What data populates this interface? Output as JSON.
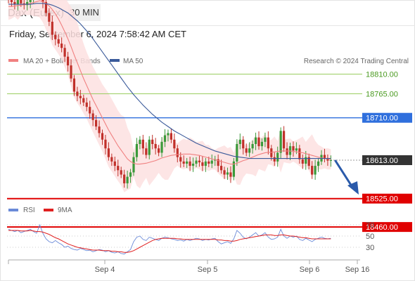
{
  "header": {
    "symbol": "Dax (Eurex)",
    "interval": "30 MIN",
    "datetime": "Friday, September 6, 2024 7:58:42 AM CET"
  },
  "legend": {
    "ma20": "MA 20 + Bollinger Bands",
    "ma50": "MA 50",
    "source": "Research © 2024 Trading Central",
    "rsi": "RSI",
    "rsi_ma": "9MA"
  },
  "colors": {
    "ma20": "#f08080",
    "ma50": "#3a5a9a",
    "band": "#fde0e0",
    "resistance": "#9acd60",
    "pivot": "#2f6fdd",
    "support": "#e00000",
    "current": "#333333",
    "up": "#3a9a3a",
    "down": "#c0302a",
    "rsi": "#6a8ad8",
    "rsi_ma": "#e02020",
    "arrow": "#2a5aaa"
  },
  "chart_data": [
    {
      "type": "candlestick",
      "x_ticks": [
        "Sep 4",
        "Sep 5",
        "Sep 6",
        "Sep 16"
      ],
      "ylim": [
        18400,
        19100
      ],
      "levels": [
        {
          "value": 18810.0,
          "label": "18810.00",
          "kind": "resistance"
        },
        {
          "value": 18765.0,
          "label": "18765.00",
          "kind": "resistance"
        },
        {
          "value": 18710.0,
          "label": "18710.00",
          "kind": "pivot"
        },
        {
          "value": 18613.0,
          "label": "18613.00",
          "kind": "current"
        },
        {
          "value": 18525.0,
          "label": "18525.00",
          "kind": "support"
        },
        {
          "value": 18460.0,
          "label": "18460.00",
          "kind": "support"
        }
      ],
      "close": [
        18980,
        18975,
        18970,
        18985,
        18972,
        18968,
        18975,
        18980,
        18990,
        18995,
        19005,
        18975,
        18950,
        18930,
        18900,
        18890,
        18880,
        18870,
        18850,
        18830,
        18800,
        18770,
        18760,
        18755,
        18745,
        18735,
        18720,
        18705,
        18690,
        18675,
        18660,
        18640,
        18620,
        18610,
        18600,
        18590,
        18580,
        18560,
        18575,
        18585,
        18620,
        18650,
        18660,
        18640,
        18625,
        18660,
        18650,
        18640,
        18630,
        18655,
        18670,
        18675,
        18660,
        18640,
        18620,
        18610,
        18605,
        18610,
        18600,
        18605,
        18612,
        18608,
        18600,
        18610,
        18605,
        18612,
        18615,
        18600,
        18590,
        18580,
        18585,
        18575,
        18610,
        18650,
        18660,
        18640,
        18630,
        18640,
        18650,
        18665,
        18645,
        18655,
        18665,
        18640,
        18620,
        18610,
        18630,
        18680,
        18640,
        18625,
        18645,
        18635,
        18640,
        18615,
        18605,
        18620,
        18600,
        18580,
        18600,
        18610,
        18625,
        18618,
        18612,
        18613
      ],
      "ma20": [
        18965,
        18965,
        18966,
        18967,
        18968,
        18969,
        18970,
        18972,
        18974,
        18976,
        18978,
        18976,
        18972,
        18966,
        18958,
        18948,
        18936,
        18922,
        18907,
        18891,
        18873,
        18854,
        18836,
        18818,
        18800,
        18784,
        18768,
        18752,
        18738,
        18724,
        18710,
        18696,
        18682,
        18670,
        18658,
        18646,
        18636,
        18626,
        18616,
        18610,
        18606,
        18604,
        18604,
        18605,
        18606,
        18608,
        18610,
        18612,
        18615,
        18618,
        18620,
        18622,
        18624,
        18625,
        18626,
        18626,
        18627,
        18627,
        18627,
        18626,
        18625,
        18624,
        18622,
        18620,
        18618,
        18616,
        18614,
        18612,
        18610,
        18608,
        18606,
        18604,
        18604,
        18606,
        18609,
        18612,
        18614,
        18617,
        18620,
        18623,
        18626,
        18628,
        18630,
        18631,
        18631,
        18632,
        18633,
        18634,
        18634,
        18634,
        18634,
        18633,
        18632,
        18631,
        18630,
        18628,
        18626,
        18624,
        18622,
        18620,
        18618,
        18617,
        18616,
        18615
      ],
      "ma50": [
        18970,
        18970,
        18970,
        18970,
        18970,
        18970,
        18970,
        18970,
        18971,
        18972,
        18972,
        18972,
        18971,
        18970,
        18968,
        18965,
        18962,
        18958,
        18954,
        18950,
        18944,
        18938,
        18932,
        18925,
        18917,
        18909,
        18900,
        18891,
        18881,
        18871,
        18861,
        18851,
        18841,
        18831,
        18821,
        18811,
        18801,
        18791,
        18781,
        18772,
        18763,
        18755,
        18747,
        18739,
        18732,
        18725,
        18718,
        18712,
        18706,
        18700,
        18695,
        18690,
        18685,
        18680,
        18676,
        18672,
        18668,
        18664,
        18660,
        18656,
        18652,
        18649,
        18646,
        18643,
        18640,
        18637,
        18634,
        18632,
        18630,
        18628,
        18626,
        18624,
        18622,
        18621,
        18620,
        18619,
        18618,
        18617,
        18617,
        18617,
        18617,
        18617,
        18617,
        18617,
        18617,
        18617,
        18617,
        18617,
        18617,
        18617,
        18617,
        18617,
        18617,
        18617,
        18617,
        18617,
        18617,
        18617,
        18617,
        18617,
        18617,
        18617,
        18617,
        18617
      ]
    },
    {
      "type": "line",
      "series": [
        {
          "name": "RSI"
        },
        {
          "name": "9MA"
        }
      ],
      "y_ticks": [
        70,
        50,
        30
      ],
      "ylim": [
        10,
        80
      ],
      "rsi": [
        62,
        60,
        58,
        60,
        56,
        58,
        60,
        62,
        58,
        55,
        70,
        55,
        45,
        40,
        38,
        42,
        38,
        35,
        30,
        32,
        28,
        26,
        25,
        28,
        26,
        24,
        25,
        22,
        24,
        26,
        25,
        22,
        24,
        21,
        20,
        22,
        19,
        18,
        22,
        26,
        40,
        48,
        50,
        44,
        42,
        48,
        46,
        44,
        42,
        46,
        48,
        47,
        45,
        44,
        42,
        43,
        41,
        44,
        42,
        44,
        46,
        45,
        42,
        44,
        43,
        45,
        46,
        40,
        36,
        38,
        40,
        37,
        45,
        60,
        55,
        48,
        45,
        48,
        52,
        56,
        50,
        52,
        56,
        48,
        44,
        45,
        48,
        62,
        50,
        46,
        50,
        48,
        50,
        44,
        42,
        46,
        43,
        40,
        44,
        46,
        48,
        46,
        45,
        46
      ],
      "rsi_ma": [
        60,
        60,
        60,
        60,
        59,
        59,
        59,
        60,
        59,
        58,
        58,
        57,
        55,
        53,
        50,
        47,
        45,
        42,
        39,
        36,
        34,
        32,
        30,
        29,
        28,
        27,
        26,
        25,
        25,
        25,
        24,
        24,
        24,
        23,
        23,
        22,
        22,
        21,
        21,
        22,
        24,
        27,
        30,
        33,
        36,
        39,
        42,
        44,
        45,
        46,
        46,
        46,
        46,
        46,
        45,
        45,
        44,
        44,
        44,
        44,
        44,
        44,
        44,
        44,
        44,
        44,
        44,
        43,
        43,
        42,
        42,
        41,
        41,
        42,
        44,
        45,
        46,
        47,
        48,
        49,
        50,
        51,
        52,
        52,
        52,
        51,
        51,
        52,
        52,
        51,
        50,
        50,
        49,
        48,
        47,
        47,
        46,
        45,
        45,
        45,
        45,
        45,
        45,
        45
      ]
    }
  ]
}
